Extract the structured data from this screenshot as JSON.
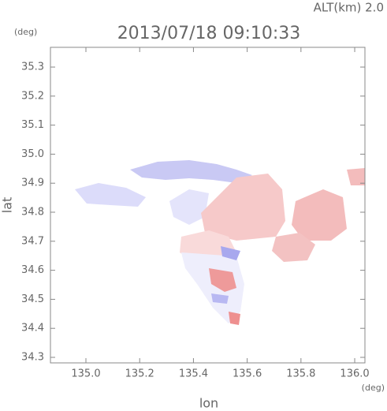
{
  "chart_data": {
    "type": "map",
    "title": "2013/07/18 09:10:33",
    "subtitle": "ALT(km) 2.0",
    "x_label": "lon",
    "y_label": "lat",
    "x_unit": "(deg)",
    "y_unit": "(deg)",
    "xlim": [
      134.868,
      136.038
    ],
    "ylim": [
      34.281,
      35.368
    ],
    "xticks": [
      {
        "value": 135.0,
        "label": "135.0"
      },
      135.2,
      135.4,
      135.6,
      135.8,
      {
        "value": 136.0,
        "label": "136.0"
      }
    ],
    "yticks": [
      35.3,
      35.2,
      35.1,
      {
        "value": 35.0,
        "label": "35.0"
      },
      34.9,
      34.8,
      34.7,
      34.6,
      34.5,
      34.4,
      34.3
    ]
  }
}
